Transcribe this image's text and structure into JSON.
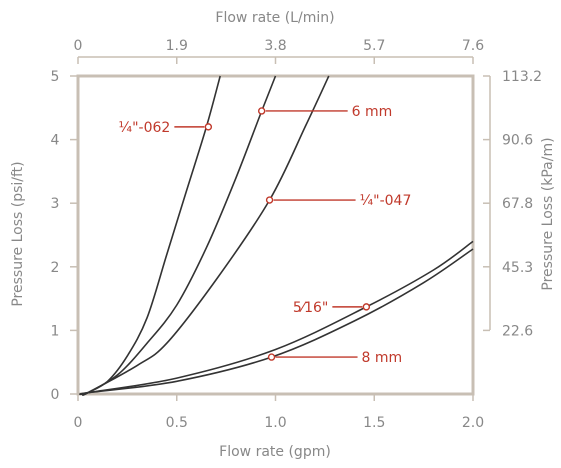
{
  "chart_data": {
    "type": "line",
    "title": "",
    "xlabel": "Flow rate (gpm)",
    "ylabel": "Pressure Loss (psi/ft)",
    "xlim": [
      0,
      2.0
    ],
    "ylim": [
      0,
      5
    ],
    "x_ticks": [
      "0",
      "0.5",
      "1.0",
      "1.5",
      "2.0"
    ],
    "x_tick_values": [
      0,
      0.5,
      1.0,
      1.5,
      2.0
    ],
    "y_ticks": [
      "0",
      "1",
      "2",
      "3",
      "4",
      "5"
    ],
    "y_tick_values": [
      0,
      1,
      2,
      3,
      4,
      5
    ],
    "secondary_x_axis": {
      "label": "Flow rate (L/min)",
      "ticks": [
        "0",
        "1.9",
        "3.8",
        "5.7",
        "7.6"
      ],
      "tick_values_gpm": [
        0,
        0.5,
        1.0,
        1.5,
        2.0
      ]
    },
    "secondary_y_axis": {
      "label": "Pressure Loss (kPa/m)",
      "ticks": [
        "22.6",
        "45.3",
        "67.8",
        "90.6",
        "113.2"
      ],
      "tick_values_psi": [
        1,
        2,
        3,
        4,
        5
      ]
    },
    "grid": false,
    "legend": "none",
    "colors": {
      "curve": "#333333",
      "callout": "#c0392b",
      "frame": "#c8bfb4",
      "label": "#888888"
    },
    "series": [
      {
        "name": "¼\"-062",
        "x": [
          0.05,
          0.15,
          0.25,
          0.35,
          0.45,
          0.55,
          0.65,
          0.72
        ],
        "y": [
          0.02,
          0.2,
          0.6,
          1.2,
          2.2,
          3.2,
          4.2,
          5.0
        ],
        "callout": {
          "x": 0.66,
          "y": 4.2,
          "side": "left"
        }
      },
      {
        "name": "6 mm",
        "x": [
          0.05,
          0.2,
          0.35,
          0.5,
          0.65,
          0.8,
          0.93,
          1.0
        ],
        "y": [
          0.02,
          0.3,
          0.8,
          1.4,
          2.3,
          3.4,
          4.45,
          5.0
        ],
        "callout": {
          "x": 0.93,
          "y": 4.45,
          "side": "right"
        }
      },
      {
        "name": "¼\"-047",
        "x": [
          0.05,
          0.3,
          0.45,
          0.7,
          0.97,
          1.15,
          1.27
        ],
        "y": [
          0.02,
          0.45,
          0.8,
          1.8,
          3.05,
          4.2,
          5.0
        ],
        "callout": {
          "x": 0.97,
          "y": 3.05,
          "side": "right"
        }
      },
      {
        "name": "5⁄16\"",
        "x": [
          0.05,
          0.5,
          1.0,
          1.46,
          1.8,
          2.0
        ],
        "y": [
          0.02,
          0.25,
          0.7,
          1.37,
          1.95,
          2.4
        ],
        "callout": {
          "x": 1.46,
          "y": 1.37,
          "side": "left"
        }
      },
      {
        "name": "8 mm",
        "x": [
          0.05,
          0.5,
          0.98,
          1.4,
          1.75,
          2.0
        ],
        "y": [
          0.02,
          0.2,
          0.58,
          1.15,
          1.75,
          2.28
        ],
        "callout": {
          "x": 0.98,
          "y": 0.58,
          "side": "right"
        }
      }
    ]
  }
}
